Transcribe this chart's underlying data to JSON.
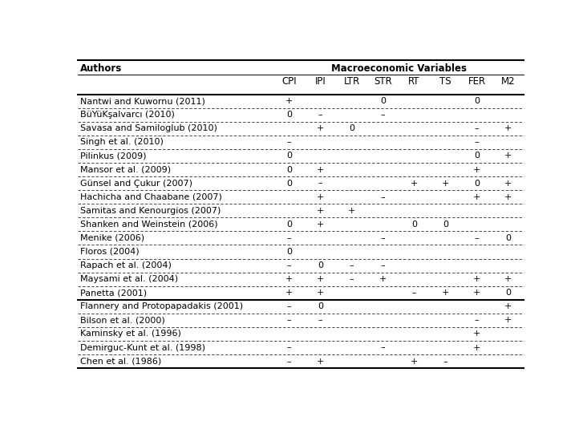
{
  "title_left": "Authors",
  "title_right": "Macroeconomic Variables",
  "col_headers": [
    "CPI",
    "IPI",
    "LTR",
    "STR",
    "RT",
    "TS",
    "FER",
    "M2"
  ],
  "rows": [
    {
      "author": "Nantwi and Kuwornu (2011)",
      "vals": [
        "+",
        "",
        "",
        "0",
        "",
        "",
        "0",
        ""
      ]
    },
    {
      "author": "BüYüKşalvarcı (2010)",
      "vals": [
        "0",
        "–",
        "",
        "–",
        "",
        "",
        "",
        ""
      ]
    },
    {
      "author": "Savasa and Samiloglub (2010)",
      "vals": [
        "",
        "+",
        "0",
        "",
        "",
        "",
        "–",
        "+"
      ]
    },
    {
      "author": "Singh et al. (2010)",
      "vals": [
        "–",
        "",
        "",
        "",
        "",
        "",
        "–",
        ""
      ]
    },
    {
      "author": "Pilinkus (2009)",
      "vals": [
        "0",
        "",
        "",
        "",
        "",
        "",
        "0",
        "+"
      ]
    },
    {
      "author": "Mansor et al. (2009)",
      "vals": [
        "0",
        "+",
        "",
        "",
        "",
        "",
        "+",
        ""
      ]
    },
    {
      "author": "Günsel and Çukur (2007)",
      "vals": [
        "0",
        "–",
        "",
        "",
        "+",
        "+",
        "0",
        "+"
      ]
    },
    {
      "author": "Hachicha and Chaabane (2007)",
      "vals": [
        "",
        "+",
        "",
        "–",
        "",
        "",
        "+",
        "+"
      ]
    },
    {
      "author": "Samitas and Kenourgios (2007)",
      "vals": [
        "",
        "+",
        "+",
        "",
        "",
        "",
        "",
        ""
      ]
    },
    {
      "author": "Shanken and Weinstein (2006)",
      "vals": [
        "0",
        "+",
        "",
        "",
        "0",
        "0",
        "",
        ""
      ]
    },
    {
      "author": "Menike (2006)",
      "vals": [
        "–",
        "",
        "",
        "–",
        "",
        "",
        "–",
        "0"
      ]
    },
    {
      "author": "Floros (2004)",
      "vals": [
        "0",
        "",
        "",
        "",
        "",
        "",
        "",
        ""
      ]
    },
    {
      "author": "Rapach et al. (2004)",
      "vals": [
        "–",
        "0",
        "–",
        "–",
        "",
        "",
        "",
        ""
      ]
    },
    {
      "author": "Maysami et al. (2004)",
      "vals": [
        "+",
        "+",
        "–",
        "+",
        "",
        "",
        "+",
        "+"
      ]
    },
    {
      "author": "Panetta (2001)",
      "vals": [
        "+",
        "+",
        "",
        "",
        "–",
        "+",
        "+",
        "0"
      ]
    },
    {
      "author": "Flannery and Protopapadakis (2001)",
      "vals": [
        "–",
        "0",
        "",
        "",
        "",
        "",
        "",
        "+"
      ]
    },
    {
      "author": "Bilson et al. (2000)",
      "vals": [
        "–",
        "–",
        "",
        "",
        "",
        "",
        "–",
        "+"
      ]
    },
    {
      "author": "Kaminsky et al. (1996)",
      "vals": [
        "",
        "",
        "",
        "",
        "",
        "",
        "+",
        ""
      ]
    },
    {
      "author": "Demirguc-Kunt et al. (1998)",
      "vals": [
        "–",
        "",
        "",
        "–",
        "",
        "",
        "+",
        ""
      ]
    },
    {
      "author": "Chen et al. (1986)",
      "vals": [
        "–",
        "+",
        "",
        "",
        "+",
        "–",
        "",
        ""
      ]
    }
  ],
  "thick_line_after_rows": [
    14
  ],
  "bg_color": "#ffffff",
  "text_color": "#000000",
  "font_size": 8.0,
  "header_font_size": 8.5
}
